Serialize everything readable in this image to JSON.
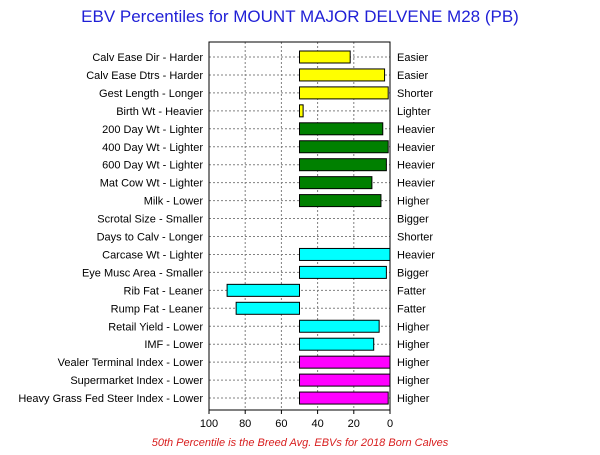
{
  "chart_data": {
    "type": "bar",
    "title": "EBV Percentiles for MOUNT MAJOR DELVENE M28 (PB)",
    "footnote": "50th Percentile is the Breed Avg. EBVs for 2018 Born Calves",
    "xlim": [
      100,
      0
    ],
    "x_ticks": [
      "100",
      "80",
      "60",
      "40",
      "20",
      "0"
    ],
    "x_tick_values": [
      100,
      80,
      60,
      40,
      20,
      0
    ],
    "baseline": 50,
    "grid": true,
    "categories": [
      {
        "left_label": "Calv Ease Dir - Harder",
        "right_label": "Easier",
        "value": 22,
        "color": "#ffff00"
      },
      {
        "left_label": "Calv Ease Dtrs - Harder",
        "right_label": "Easier",
        "value": 3,
        "color": "#ffff00"
      },
      {
        "left_label": "Gest Length - Longer",
        "right_label": "Shorter",
        "value": 1,
        "color": "#ffff00"
      },
      {
        "left_label": "Birth Wt - Heavier",
        "right_label": "Lighter",
        "value": 48,
        "color": "#ffff00"
      },
      {
        "left_label": "200 Day Wt - Lighter",
        "right_label": "Heavier",
        "value": 4,
        "color": "#008000"
      },
      {
        "left_label": "400 Day Wt - Lighter",
        "right_label": "Heavier",
        "value": 1,
        "color": "#008000"
      },
      {
        "left_label": "600 Day Wt - Lighter",
        "right_label": "Heavier",
        "value": 2,
        "color": "#008000"
      },
      {
        "left_label": "Mat Cow Wt - Lighter",
        "right_label": "Heavier",
        "value": 10,
        "color": "#008000"
      },
      {
        "left_label": "Milk - Lower",
        "right_label": "Higher",
        "value": 5,
        "color": "#008000"
      },
      {
        "left_label": "Scrotal Size - Smaller",
        "right_label": "Bigger",
        "value": null,
        "color": "#008000"
      },
      {
        "left_label": "Days to Calv - Longer",
        "right_label": "Shorter",
        "value": null,
        "color": "#008000"
      },
      {
        "left_label": "Carcase Wt - Lighter",
        "right_label": "Heavier",
        "value": 0,
        "color": "#00ffff"
      },
      {
        "left_label": "Eye Musc Area - Smaller",
        "right_label": "Bigger",
        "value": 2,
        "color": "#00ffff"
      },
      {
        "left_label": "Rib Fat - Leaner",
        "right_label": "Fatter",
        "value": 90,
        "color": "#00ffff"
      },
      {
        "left_label": "Rump Fat - Leaner",
        "right_label": "Fatter",
        "value": 85,
        "color": "#00ffff"
      },
      {
        "left_label": "Retail Yield - Lower",
        "right_label": "Higher",
        "value": 6,
        "color": "#00ffff"
      },
      {
        "left_label": "IMF - Lower",
        "right_label": "Higher",
        "value": 9,
        "color": "#00ffff"
      },
      {
        "left_label": "Vealer Terminal Index - Lower",
        "right_label": "Higher",
        "value": 0,
        "color": "#ff00ff"
      },
      {
        "left_label": "Supermarket Index - Lower",
        "right_label": "Higher",
        "value": 0,
        "color": "#ff00ff"
      },
      {
        "left_label": "Heavy Grass Fed Steer Index - Lower",
        "right_label": "Higher",
        "value": 1,
        "color": "#ff00ff"
      }
    ]
  }
}
